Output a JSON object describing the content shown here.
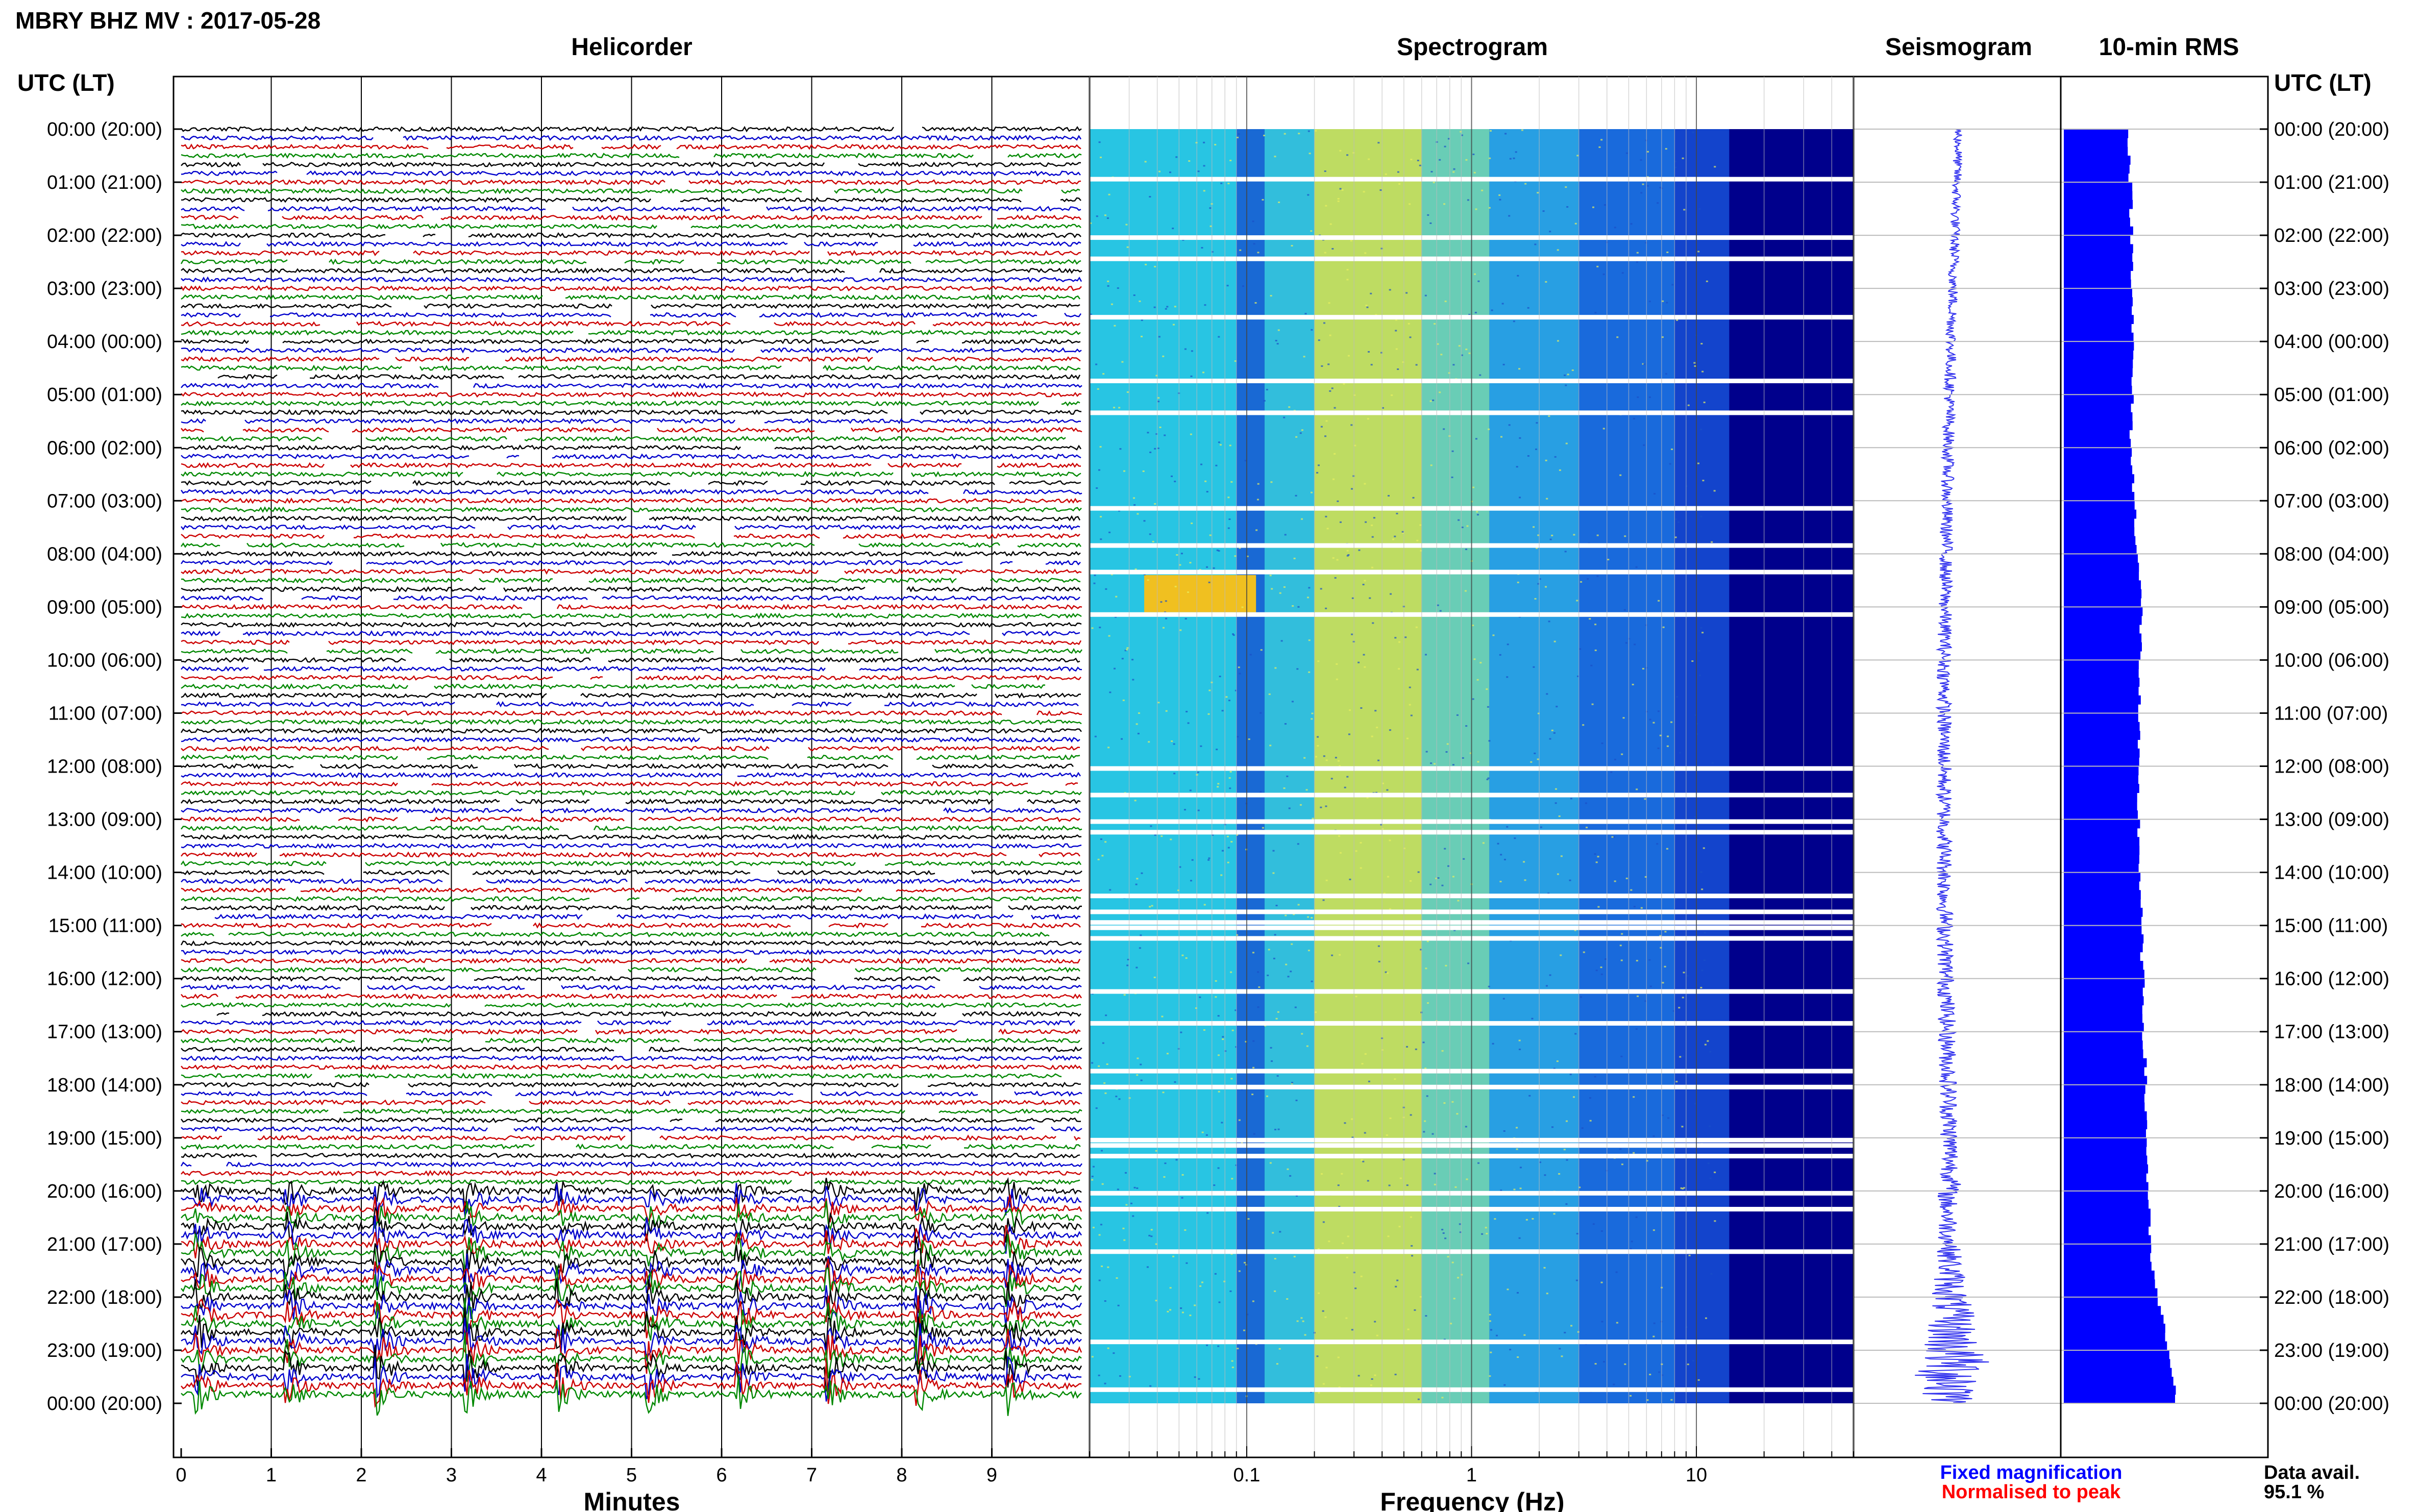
{
  "title": "MBRY BHZ MV : 2017-05-28",
  "panels": {
    "helicorder": "Helicorder",
    "spectrogram": "Spectrogram",
    "seismogram": "Seismogram",
    "rms": "10-min RMS"
  },
  "time_axis_label": "UTC (LT)",
  "time_labels": [
    "00:00 (20:00)",
    "01:00 (21:00)",
    "02:00 (22:00)",
    "03:00 (23:00)",
    "04:00 (00:00)",
    "05:00 (01:00)",
    "06:00 (02:00)",
    "07:00 (03:00)",
    "08:00 (04:00)",
    "09:00 (05:00)",
    "10:00 (06:00)",
    "11:00 (07:00)",
    "12:00 (08:00)",
    "13:00 (09:00)",
    "14:00 (10:00)",
    "15:00 (11:00)",
    "16:00 (12:00)",
    "17:00 (13:00)",
    "18:00 (14:00)",
    "19:00 (15:00)",
    "20:00 (16:00)",
    "21:00 (17:00)",
    "22:00 (18:00)",
    "23:00 (19:00)",
    "00:00 (20:00)"
  ],
  "minutes_label": "Minutes",
  "minutes_ticks": [
    "0",
    "1",
    "2",
    "3",
    "4",
    "5",
    "6",
    "7",
    "8",
    "9"
  ],
  "frequency_label": "Frequency (Hz)",
  "frequency_ticks": [
    "0.1",
    "1",
    "10"
  ],
  "legend": {
    "fixed": "Fixed magnification",
    "normalised": "Normalised to peak",
    "fixed_color": "#0000ff",
    "normalised_color": "#ff0000"
  },
  "data_avail_label": "Data avail.",
  "data_avail_value": "95.1 %",
  "colors": {
    "trace_cycle": [
      "#000000",
      "#0000cc",
      "#cc0000",
      "#008800"
    ],
    "spectrogram_base": "#00008c",
    "rms_fill": "#0000ff"
  },
  "chart_data": [
    {
      "type": "line",
      "name": "helicorder",
      "x_unit": "minutes",
      "xlim": [
        0,
        10
      ],
      "rows": 144,
      "row_duration_minutes": 10,
      "quiet_hours_utc": [
        0,
        20
      ],
      "active_hours_utc": [
        20,
        24
      ],
      "repeating_events_minutes": [
        0.2,
        1.2,
        2.2,
        3.2,
        4.2,
        5.2,
        6.2,
        7.2,
        8.2,
        9.2
      ]
    },
    {
      "type": "heatmap",
      "name": "spectrogram",
      "x_scale": "log",
      "xlim_hz": [
        0.02,
        50
      ],
      "peak_band_hz": [
        0.2,
        0.6
      ],
      "gap_hours_utc": [
        0.9,
        2.0,
        2.4,
        3.5,
        4.7,
        5.3,
        7.1,
        7.8,
        8.3,
        9.1,
        12.0,
        12.5,
        13.0,
        13.2,
        14.4,
        14.7,
        14.9,
        15.0,
        15.2,
        16.2,
        16.8,
        17.7,
        18.0,
        19.0,
        19.1,
        19.3,
        20.0,
        20.3,
        21.1,
        22.8,
        23.7
      ]
    },
    {
      "type": "line",
      "name": "seismogram",
      "amplitude_profile": [
        {
          "hour": 0,
          "amp": 0.15
        },
        {
          "hour": 6,
          "amp": 0.2
        },
        {
          "hour": 12,
          "amp": 0.25
        },
        {
          "hour": 18,
          "amp": 0.3
        },
        {
          "hour": 21,
          "amp": 0.35
        },
        {
          "hour": 22.5,
          "amp": 0.8
        },
        {
          "hour": 23.7,
          "amp": 1.5
        },
        {
          "hour": 24,
          "amp": 0.6
        }
      ]
    },
    {
      "type": "bar",
      "name": "10-min RMS",
      "orientation": "horizontal",
      "bin_minutes": 10,
      "rms_profile": [
        {
          "hour": 0,
          "value": 0.32
        },
        {
          "hour": 3,
          "value": 0.34
        },
        {
          "hour": 6,
          "value": 0.33
        },
        {
          "hour": 9,
          "value": 0.38
        },
        {
          "hour": 12,
          "value": 0.36
        },
        {
          "hour": 15,
          "value": 0.38
        },
        {
          "hour": 18,
          "value": 0.4
        },
        {
          "hour": 21,
          "value": 0.42
        },
        {
          "hour": 22,
          "value": 0.46
        },
        {
          "hour": 23,
          "value": 0.52
        },
        {
          "hour": 24,
          "value": 0.55
        }
      ]
    }
  ]
}
